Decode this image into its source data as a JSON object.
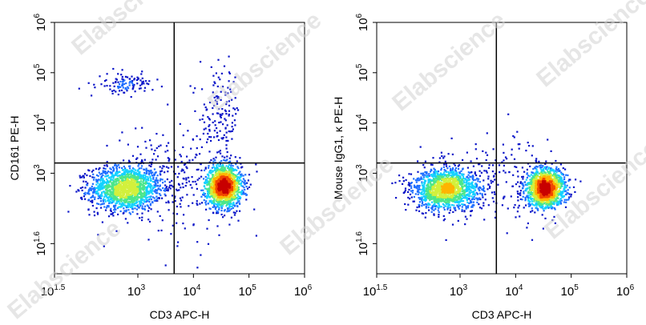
{
  "chart_data": [
    {
      "type": "scatter",
      "subtype": "flow-cytometry-density-plot",
      "xlabel": "CD3 APC-H",
      "ylabel": "CD161 PE-H",
      "x_scale": "log",
      "y_scale": "log",
      "xlim": [
        31.6,
        1000000
      ],
      "ylim": [
        10,
        1000000
      ],
      "x_ticks": [
        {
          "mantissa": "10",
          "exponent": "1.5"
        },
        {
          "mantissa": "10",
          "exponent": "3"
        },
        {
          "mantissa": "10",
          "exponent": "4"
        },
        {
          "mantissa": "10",
          "exponent": "5"
        },
        {
          "mantissa": "10",
          "exponent": "6"
        }
      ],
      "y_ticks": [
        {
          "mantissa": "10",
          "exponent": "1.6"
        },
        {
          "mantissa": "10",
          "exponent": "3"
        },
        {
          "mantissa": "10",
          "exponent": "4"
        },
        {
          "mantissa": "10",
          "exponent": "5"
        },
        {
          "mantissa": "10",
          "exponent": "6"
        }
      ],
      "x_tick_values": [
        31.6,
        1000,
        10000,
        100000,
        1000000
      ],
      "y_tick_values": [
        39.8,
        1000,
        10000,
        100000,
        1000000
      ],
      "gate_x": 4500,
      "gate_y": 1600,
      "populations": [
        {
          "x": 600,
          "y": 500,
          "spread_x_decades": 0.32,
          "spread_y_decades": 0.22,
          "points": 1500
        },
        {
          "x": 35000,
          "y": 550,
          "spread_x_decades": 0.16,
          "spread_y_decades": 0.2,
          "points": 1500
        },
        {
          "x": 30000,
          "y": 15000,
          "spread_x_decades": 0.18,
          "spread_y_decades": 0.45,
          "points": 140
        },
        {
          "x": 600,
          "y": 60000,
          "spread_x_decades": 0.25,
          "spread_y_decades": 0.1,
          "points": 110
        },
        {
          "x": 5000,
          "y": 800,
          "spread_x_decades": 0.55,
          "spread_y_decades": 0.55,
          "points": 260
        }
      ],
      "colorscale": [
        "#0a14c8",
        "#1e6eff",
        "#14d2ff",
        "#4be68c",
        "#d2f03c",
        "#ffb400",
        "#f04600",
        "#c80000"
      ]
    },
    {
      "type": "scatter",
      "subtype": "flow-cytometry-density-plot",
      "xlabel": "CD3 APC-H",
      "ylabel": "Mouse IgG1, κ PE-H",
      "x_scale": "log",
      "y_scale": "log",
      "xlim": [
        31.6,
        1000000
      ],
      "ylim": [
        10,
        1000000
      ],
      "x_ticks": [
        {
          "mantissa": "10",
          "exponent": "1.5"
        },
        {
          "mantissa": "10",
          "exponent": "3"
        },
        {
          "mantissa": "10",
          "exponent": "4"
        },
        {
          "mantissa": "10",
          "exponent": "5"
        },
        {
          "mantissa": "10",
          "exponent": "6"
        }
      ],
      "y_ticks": [
        {
          "mantissa": "10",
          "exponent": "1.6"
        },
        {
          "mantissa": "10",
          "exponent": "3"
        },
        {
          "mantissa": "10",
          "exponent": "4"
        },
        {
          "mantissa": "10",
          "exponent": "5"
        },
        {
          "mantissa": "10",
          "exponent": "6"
        }
      ],
      "x_tick_values": [
        31.6,
        1000,
        10000,
        100000,
        1000000
      ],
      "y_tick_values": [
        39.8,
        1000,
        10000,
        100000,
        1000000
      ],
      "gate_x": 4500,
      "gate_y": 1600,
      "populations": [
        {
          "x": 550,
          "y": 480,
          "spread_x_decades": 0.3,
          "spread_y_decades": 0.2,
          "points": 1500
        },
        {
          "x": 35000,
          "y": 500,
          "spread_x_decades": 0.17,
          "spread_y_decades": 0.19,
          "points": 1500
        },
        {
          "x": 4000,
          "y": 700,
          "spread_x_decades": 0.6,
          "spread_y_decades": 0.45,
          "points": 180
        }
      ],
      "colorscale": [
        "#0a14c8",
        "#1e6eff",
        "#14d2ff",
        "#4be68c",
        "#d2f03c",
        "#ffb400",
        "#f04600",
        "#c80000"
      ]
    }
  ],
  "watermark": "Elabscience"
}
